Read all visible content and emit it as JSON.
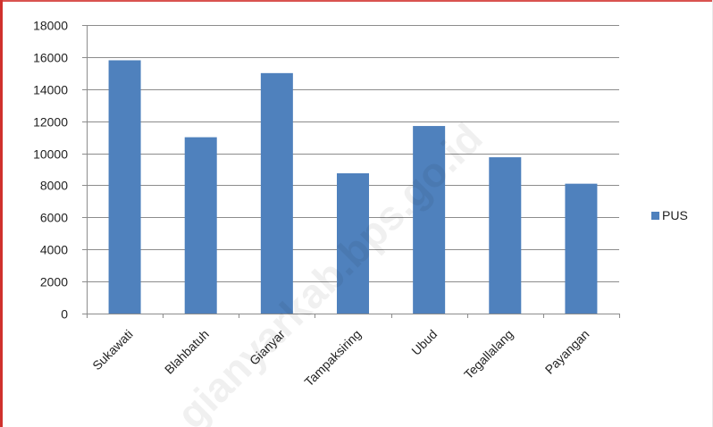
{
  "chart_data": {
    "type": "bar",
    "categories": [
      "Sukawati",
      "Blahbatuh",
      "Gianyar",
      "Tampaksiring",
      "Ubud",
      "Tegallalang",
      "Payangan"
    ],
    "series": [
      {
        "name": "PUS",
        "values": [
          15800,
          11000,
          15000,
          8750,
          11700,
          9750,
          8100
        ],
        "color": "#4f81bd"
      }
    ],
    "ylim": [
      0,
      18000
    ],
    "yticks": [
      0,
      2000,
      4000,
      6000,
      8000,
      10000,
      12000,
      14000,
      16000,
      18000
    ],
    "grid": true,
    "legend_position": "right"
  },
  "watermark": "gianyarkab.bps.go.id"
}
